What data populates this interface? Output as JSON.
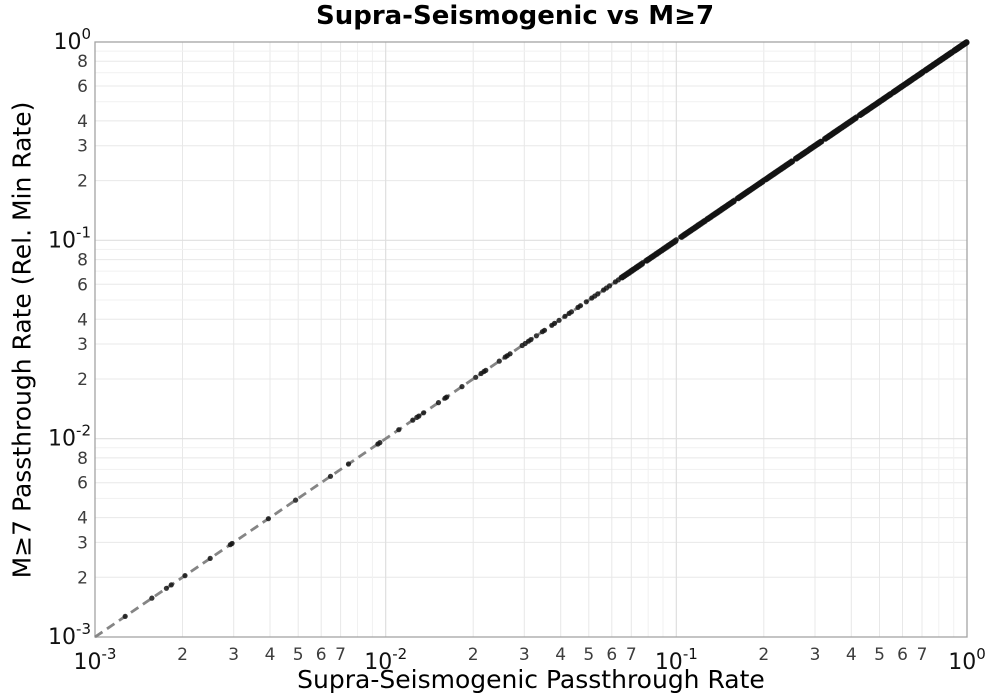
{
  "chart_data": {
    "type": "scatter",
    "title": "Supra-Seismogenic vs M≥7",
    "xlabel": "Supra-Seismogenic Passthrough Rate",
    "ylabel": "M≥7 Passthrough Rate (Rel. Min Rate)",
    "xscale": "log",
    "yscale": "log",
    "xlim": [
      0.001,
      1.0
    ],
    "ylim": [
      0.001,
      1.0
    ],
    "grid": true,
    "legend": null,
    "x_major_exponents": [
      -3,
      -2,
      -1,
      0
    ],
    "y_major_exponents": [
      -3,
      -2,
      -1,
      0
    ],
    "x_minor_label_digits": [
      2,
      3,
      4,
      5,
      6,
      7
    ],
    "y_minor_label_digits": [
      2,
      3,
      4,
      6,
      8
    ],
    "minor_grid_digits": [
      2,
      3,
      4,
      5,
      6,
      7,
      8,
      9
    ],
    "relation": "all points fall on the identity line y = x",
    "identity_line": {
      "color": "#858585",
      "dash": [
        9,
        5.5
      ],
      "width": 2.8
    },
    "marker": {
      "color": "#141414",
      "radius": 2.6,
      "opacity": 0.85
    },
    "sparse_x": [
      0.00127,
      0.00157,
      0.00176,
      0.00183,
      0.00204,
      0.00249,
      0.00292,
      0.00296,
      0.00395,
      0.0049,
      0.00646,
      0.00745,
      0.0094,
      0.00955,
      0.0111,
      0.0124,
      0.0128,
      0.013,
      0.0135,
      0.0152,
      0.016,
      0.0162,
      0.0183,
      0.0204,
      0.0213,
      0.0218,
      0.0221,
      0.0246,
      0.0258,
      0.0262,
      0.0268,
      0.0295,
      0.0302,
      0.031,
      0.0316,
      0.033,
      0.0346,
      0.0352,
      0.0373,
      0.0381,
      0.0395,
      0.0414,
      0.0428,
      0.0436,
      0.0459,
      0.0468,
      0.049,
      0.0512,
      0.0524,
      0.0537,
      0.0562,
      0.0575,
      0.0589,
      0.0617,
      0.0632
    ],
    "dense_runs": [
      {
        "from": 0.0646,
        "to": 0.0767,
        "count": 40
      },
      {
        "from": 0.0785,
        "to": 0.1,
        "count": 55
      },
      {
        "from": 0.1035,
        "to": 0.1259,
        "count": 48
      },
      {
        "from": 0.1274,
        "to": 0.1585,
        "count": 55
      },
      {
        "from": 0.1622,
        "to": 0.1995,
        "count": 55
      },
      {
        "from": 0.2018,
        "to": 0.2512,
        "count": 60
      },
      {
        "from": 0.257,
        "to": 0.3162,
        "count": 60
      },
      {
        "from": 0.3236,
        "to": 0.4169,
        "count": 70
      },
      {
        "from": 0.4266,
        "to": 0.5495,
        "count": 75
      },
      {
        "from": 0.5559,
        "to": 0.7079,
        "count": 80
      },
      {
        "from": 0.7161,
        "to": 0.8913,
        "count": 90
      },
      {
        "from": 0.9016,
        "to": 1.0,
        "count": 60
      }
    ],
    "colors": {
      "background": "#ffffff",
      "major_grid": "#dfdfdf",
      "minor_grid_labeled": "#e8e8e8",
      "minor_grid": "#f1f1f1",
      "spine": "#a3a3a3",
      "tick_label": "#111111",
      "minor_tick_label": "#3d3d3d",
      "title": "#000000"
    }
  }
}
